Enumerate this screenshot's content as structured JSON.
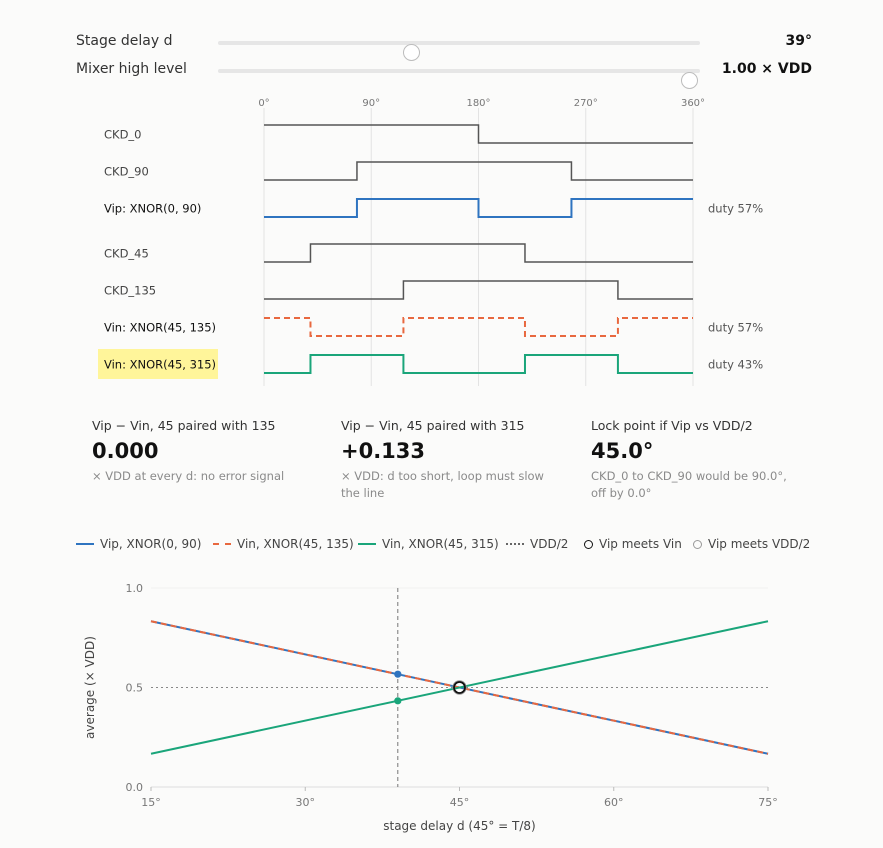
{
  "controls": {
    "stage_delay": {
      "label": "Stage delay d",
      "value_text": "39°",
      "fraction": 0.402
    },
    "mixer_high": {
      "label": "Mixer high level",
      "value_text": "1.00 × VDD",
      "fraction": 0.98
    }
  },
  "timing": {
    "axis_ticks": [
      "0°",
      "90°",
      "180°",
      "270°",
      "360°"
    ],
    "colors": {
      "clock": "#555555",
      "vip": "#2f74c0",
      "vin_135": "#e8683f",
      "vin_315": "#1aa57a"
    },
    "rows": [
      {
        "label": "CKD_0",
        "kind": "clock",
        "highlight": false,
        "duty": "",
        "levels": [
          [
            0,
            1
          ],
          [
            180,
            0
          ]
        ]
      },
      {
        "label": "CKD_90",
        "kind": "clock",
        "highlight": false,
        "duty": "",
        "levels": [
          [
            0,
            0
          ],
          [
            78,
            1
          ],
          [
            258,
            0
          ]
        ]
      },
      {
        "label": "Vip: XNOR(0, 90)",
        "kind": "vip",
        "highlight": false,
        "duty": "duty 57%",
        "levels": [
          [
            0,
            0
          ],
          [
            78,
            1
          ],
          [
            180,
            0
          ],
          [
            258,
            1
          ]
        ]
      },
      {
        "label": "CKD_45",
        "kind": "clock",
        "highlight": false,
        "duty": "",
        "levels": [
          [
            0,
            0
          ],
          [
            39,
            1
          ],
          [
            219,
            0
          ]
        ]
      },
      {
        "label": "CKD_135",
        "kind": "clock",
        "highlight": false,
        "duty": "",
        "levels": [
          [
            0,
            0
          ],
          [
            117,
            1
          ],
          [
            297,
            0
          ]
        ]
      },
      {
        "label": "Vin: XNOR(45, 135)",
        "kind": "vin_135",
        "highlight": false,
        "duty": "duty 57%",
        "levels": [
          [
            0,
            1
          ],
          [
            39,
            0
          ],
          [
            117,
            1
          ],
          [
            219,
            0
          ],
          [
            297,
            1
          ]
        ]
      },
      {
        "label": "Vin: XNOR(45, 315)",
        "kind": "vin_315",
        "highlight": true,
        "duty": "duty 43%",
        "levels": [
          [
            0,
            0
          ],
          [
            39,
            1
          ],
          [
            117,
            0
          ],
          [
            219,
            1
          ],
          [
            297,
            0
          ]
        ]
      }
    ]
  },
  "stats": [
    {
      "label": "Vip − Vin, 45 paired with 135",
      "value": "0.000",
      "note": "× VDD at every d: no error signal"
    },
    {
      "label": "Vip − Vin, 45 paired with 315",
      "value": "+0.133",
      "note": "× VDD: d too short, loop must slow the line"
    },
    {
      "label": "Lock point if Vip vs VDD/2",
      "value": "45.0°",
      "note": "CKD_0 to CKD_90 would be 90.0°, off by 0.0°"
    }
  ],
  "legend": [
    {
      "label": "Vip, XNOR(0, 90)",
      "kind": "solid",
      "color": "#2f74c0"
    },
    {
      "label": "Vin, XNOR(45, 135)",
      "kind": "dashed",
      "color": "#e8683f"
    },
    {
      "label": "Vin, XNOR(45, 315)",
      "kind": "solid",
      "color": "#1aa57a"
    },
    {
      "label": "VDD/2",
      "kind": "dotted",
      "color": "#666666"
    },
    {
      "label": "Vip meets Vin",
      "kind": "ring-dark",
      "color": "#111111"
    },
    {
      "label": "Vip meets VDD/2",
      "kind": "ring-light",
      "color": "#999999"
    }
  ],
  "chart_data": {
    "type": "line",
    "xlabel": "stage delay d (45° = T/8)",
    "ylabel": "average (× VDD)",
    "xlim": [
      15,
      75
    ],
    "ylim": [
      0,
      1
    ],
    "xticks": [
      15,
      30,
      45,
      60,
      75
    ],
    "xtick_labels": [
      "15°",
      "30°",
      "45°",
      "60°",
      "75°"
    ],
    "yticks": [
      0,
      0.5,
      1
    ],
    "ytick_labels": [
      "0.0",
      "0.5",
      "1.0"
    ],
    "reference_line": {
      "y": 0.5,
      "style": "dotted"
    },
    "marker_line": {
      "x": 39,
      "style": "dashed"
    },
    "series": [
      {
        "name": "Vip, XNOR(0, 90)",
        "color": "#2f74c0",
        "style": "solid",
        "x": [
          15,
          75
        ],
        "y": [
          0.833,
          0.167
        ]
      },
      {
        "name": "Vin, XNOR(45, 135)",
        "color": "#e8683f",
        "style": "dashed",
        "x": [
          15,
          75
        ],
        "y": [
          0.833,
          0.167
        ]
      },
      {
        "name": "Vin, XNOR(45, 315)",
        "color": "#1aa57a",
        "style": "solid",
        "x": [
          15,
          75
        ],
        "y": [
          0.167,
          0.833
        ]
      }
    ],
    "current_points": [
      {
        "x": 39,
        "y": 0.567,
        "color": "#2f74c0"
      },
      {
        "x": 39,
        "y": 0.433,
        "color": "#1aa57a"
      }
    ],
    "crossings": [
      {
        "name": "Vip meets Vin",
        "x": 45,
        "y": 0.5
      },
      {
        "name": "Vip meets VDD/2",
        "x": 45,
        "y": 0.5
      }
    ]
  }
}
